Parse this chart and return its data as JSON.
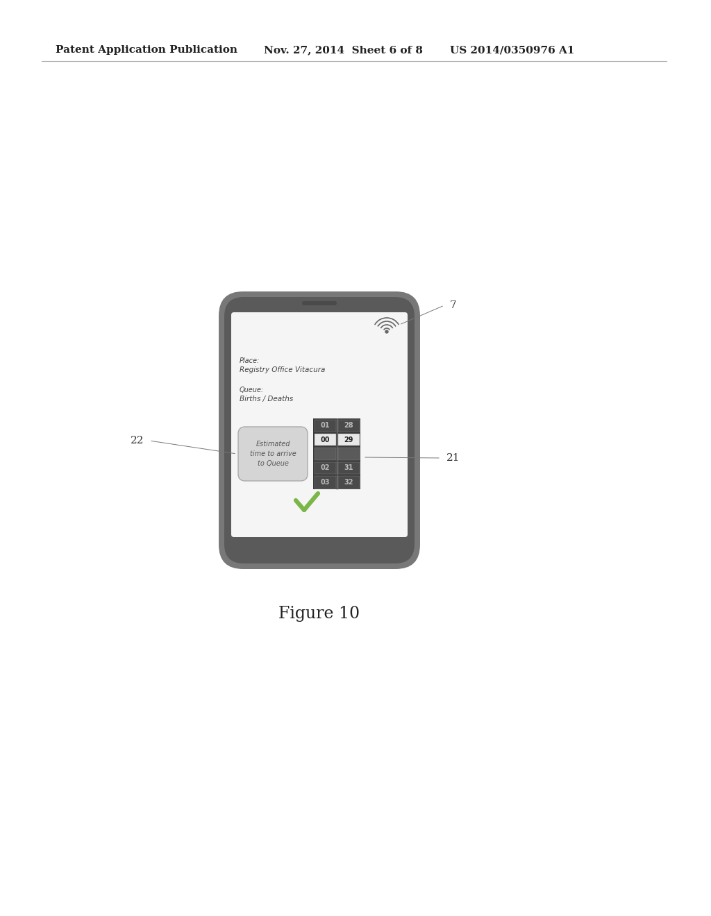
{
  "header_left": "Patent Application Publication",
  "header_center": "Nov. 27, 2014  Sheet 6 of 8",
  "header_right": "US 2014/0350976 A1",
  "figure_caption": "Figure 10",
  "label_7": "7",
  "label_21": "21",
  "label_22": "22",
  "place_label": "Place:",
  "place_value": "Registry Office Vitacura",
  "queue_label": "Queue:",
  "queue_value": "Births / Deaths",
  "button_line1": "Estimated",
  "button_line2": "time to arrive",
  "button_line3": "to Queue",
  "bg_color": "#ffffff",
  "phone_color": "#888888",
  "phone_dark": "#6a6a6a",
  "screen_color": "#ffffff",
  "ticker_bg": "#4a4a4a",
  "ticker_highlight": "#ffffff",
  "ticker_dark_cell": "#6a6a6a",
  "btn_color": "#d8d8d8",
  "check_color": "#7ab648",
  "text_color": "#444444",
  "label_color": "#333333",
  "line_color": "#666666"
}
